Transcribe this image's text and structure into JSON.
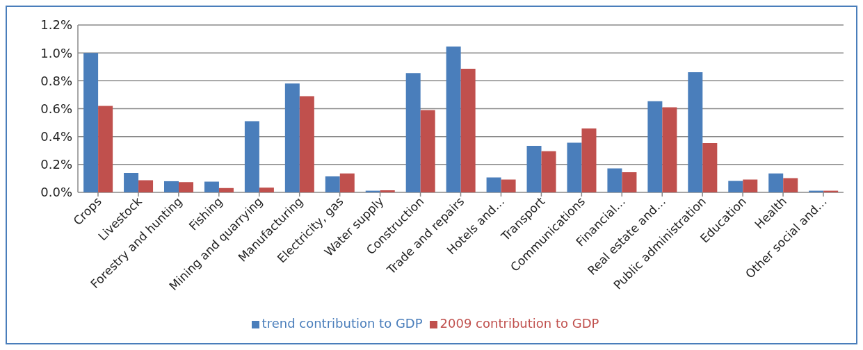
{
  "chart_data": {
    "type": "bar",
    "categories": [
      "Crops",
      "Livestock",
      "Forestry and hunting",
      "Fishing",
      "Mining and quarrying",
      "Manufacturing",
      "Electricity, gas",
      "Water supply",
      "Construction",
      "Trade and repairs",
      "Hotels and…",
      "Transport",
      "Communications",
      "Financial…",
      "Real estate and…",
      "Public administration",
      "Education",
      "Health",
      "Other social and…"
    ],
    "series": [
      {
        "name": "trend contribution to GDP",
        "color": "#4a7ebb",
        "values": [
          1.0,
          0.14,
          0.08,
          0.077,
          0.51,
          0.78,
          0.114,
          0.012,
          0.855,
          1.046,
          0.107,
          0.334,
          0.356,
          0.172,
          0.654,
          0.862,
          0.082,
          0.136,
          0.012
        ]
      },
      {
        "name": "2009 contribution to GDP",
        "color": "#c0504d",
        "values": [
          0.62,
          0.087,
          0.073,
          0.031,
          0.034,
          0.69,
          0.136,
          0.015,
          0.59,
          0.886,
          0.092,
          0.295,
          0.458,
          0.145,
          0.61,
          0.353,
          0.092,
          0.102,
          0.012
        ]
      }
    ],
    "ylim": [
      0,
      1.2
    ],
    "yticks": [
      {
        "value": 0,
        "label": "0.0%"
      },
      {
        "value": 0.2,
        "label": "0.2%"
      },
      {
        "value": 0.4,
        "label": "0.4%"
      },
      {
        "value": 0.6,
        "label": "0.6%"
      },
      {
        "value": 0.8,
        "label": "0.8%"
      },
      {
        "value": 1.0,
        "label": "1.0%"
      },
      {
        "value": 1.2,
        "label": "1.2%"
      }
    ],
    "grid": "y",
    "legend": "bottom"
  }
}
